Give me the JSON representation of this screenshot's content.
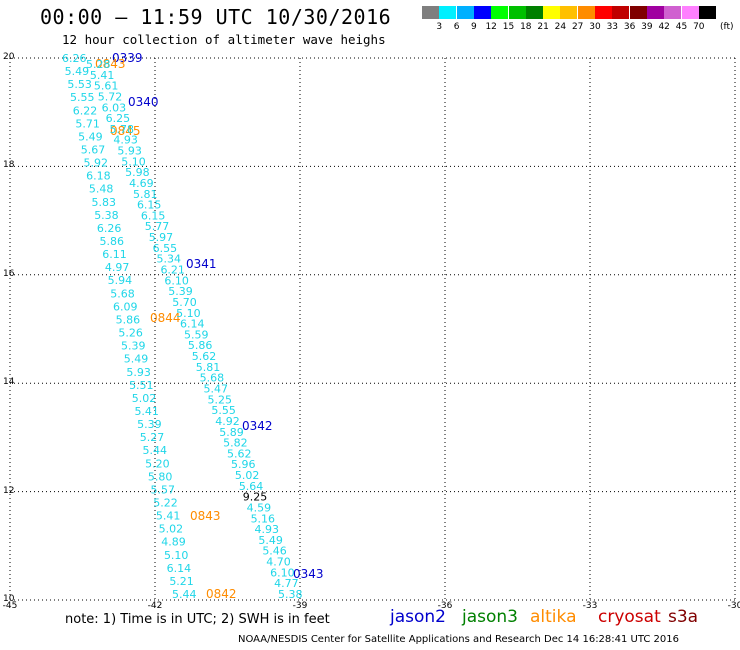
{
  "title": "00:00 – 11:59 UTC 10/30/2016",
  "subtitle": "12 hour collection of altimeter wave heighs",
  "legend": {
    "unit": "(ft)",
    "colors": [
      "#7f7f7f",
      "#00f0ff",
      "#00b0ff",
      "#0000ff",
      "#00ff00",
      "#00c000",
      "#008000",
      "#ffff00",
      "#ffc000",
      "#ff8c00",
      "#ff0000",
      "#c00000",
      "#800000",
      "#a000a0",
      "#d060d0",
      "#ff80ff",
      "#000000"
    ],
    "ticks": [
      "3",
      "6",
      "9",
      "12",
      "15",
      "18",
      "21",
      "24",
      "27",
      "30",
      "33",
      "36",
      "39",
      "42",
      "45",
      "70"
    ]
  },
  "axes": {
    "lat_labels": [
      "20",
      "18",
      "16",
      "14",
      "12",
      "10"
    ],
    "lon_labels": [
      "-45",
      "-42",
      "-39",
      "-36",
      "-33",
      "-30"
    ],
    "lat_range": [
      10,
      20
    ],
    "lon_range": [
      -45,
      -30
    ]
  },
  "tracks": [
    {
      "name": "track-1",
      "satellite": "jason2",
      "swh": [
        "6.26",
        "5.49",
        "5.53",
        "5.55",
        "6.22",
        "5.71",
        "5.49",
        "5.67",
        "5.92",
        "6.18",
        "5.48",
        "5.83",
        "5.38",
        "6.26",
        "5.86",
        "6.11",
        "4.97",
        "5.94",
        "5.68",
        "6.09",
        "5.86",
        "5.26",
        "5.39",
        "5.49",
        "5.93",
        "5.51",
        "5.02",
        "5.41",
        "5.39",
        "5.27",
        "5.44",
        "5.20",
        "5.80",
        "5.57",
        "5.22",
        "5.41",
        "5.02",
        "4.89",
        "5.10",
        "6.14",
        "5.21",
        "5.44"
      ],
      "times": [
        {
          "text": "0339",
          "color": "#0000cc"
        },
        {
          "text": "0843",
          "color": "#ff8c00"
        },
        {
          "text": "0340",
          "color": "#0000cc"
        },
        {
          "text": "0845",
          "color": "#ff8c00"
        },
        {
          "text": "0844",
          "color": "#ff8c00"
        },
        {
          "text": "0843",
          "color": "#ff8c00"
        },
        {
          "text": "0842",
          "color": "#ff8c00"
        }
      ]
    },
    {
      "name": "track-2",
      "satellite": "jason2",
      "swh": [
        "5.28",
        "5.41",
        "5.61",
        "5.72",
        "6.03",
        "6.25",
        "5.78",
        "4.93",
        "5.93",
        "5.10",
        "5.98",
        "4.69",
        "5.81",
        "6.15",
        "6.15",
        "5.77",
        "5.97",
        "6.55",
        "5.34",
        "6.21",
        "6.10",
        "5.39",
        "5.70",
        "5.10",
        "6.14",
        "5.59",
        "5.86",
        "5.62",
        "5.81",
        "5.68",
        "5.47",
        "5.25",
        "5.55",
        "4.92",
        "5.89",
        "5.82",
        "5.62",
        "5.96",
        "5.02",
        "5.64",
        "9.25",
        "4.59",
        "5.16",
        "4.93",
        "5.49",
        "5.46",
        "4.70",
        "6.10",
        "4.77",
        "5.38"
      ],
      "times": [
        {
          "text": "0341",
          "color": "#0000cc"
        },
        {
          "text": "0342",
          "color": "#0000cc"
        },
        {
          "text": "0343",
          "color": "#0000cc"
        }
      ]
    }
  ],
  "satellites": [
    {
      "name": "jason2",
      "color": "#0000cc"
    },
    {
      "name": "jason3",
      "color": "#008000"
    },
    {
      "name": "altika",
      "color": "#ff8c00"
    },
    {
      "name": "cryosat",
      "color": "#cc0000"
    },
    {
      "name": "s3a",
      "color": "#800000"
    }
  ],
  "note": "note: 1) Time is in UTC; 2) SWH is in feet",
  "credit": "NOAA/NESDIS Center for Satellite Applications and Research     Dec 14 16:28:41 UTC 2016"
}
